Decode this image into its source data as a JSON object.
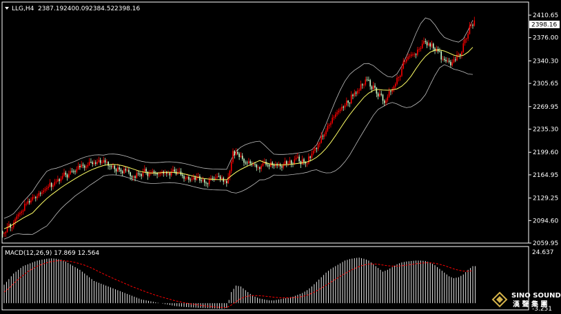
{
  "header": {
    "symbol": "LLG,H4",
    "open": "2387.19",
    "high": "2400.09",
    "low": "2384.52",
    "close": "2398.16"
  },
  "macd_label": "MACD(12,26,9) 17.869 12.564",
  "price_axis": {
    "ticks": [
      "2410.65",
      "2376.00",
      "2340.30",
      "2305.65",
      "2269.95",
      "2235.30",
      "2199.60",
      "2164.95",
      "2129.25",
      "2094.60",
      "2059.95"
    ],
    "current_price": "2398.16"
  },
  "macd_axis": {
    "max_label": "24.637",
    "min_label": "-3.251"
  },
  "logo": {
    "line1": "SINO SOUND",
    "line2": "漢 聲 集 團"
  },
  "colors": {
    "background": "#000000",
    "bull_candle": "#ff0000",
    "bear_candle": "#ccffcc",
    "ma_line": "#ffff66",
    "bands": "#c0c0c0",
    "macd_hist": "#ffffff",
    "macd_signal": "#ff0000",
    "frame": "#ffffff"
  },
  "chart_data": {
    "type": "line",
    "price": {
      "ylim": [
        2059.95,
        2410.65
      ],
      "close": [
        2082,
        2088,
        2098,
        2108,
        2116,
        2122,
        2130,
        2136,
        2140,
        2146,
        2150,
        2154,
        2160,
        2164,
        2168,
        2172,
        2176,
        2178,
        2180,
        2182,
        2183,
        2184,
        2182,
        2178,
        2174,
        2170,
        2168,
        2166,
        2166,
        2167,
        2168,
        2169,
        2170,
        2171,
        2170,
        2168,
        2164,
        2162,
        2160,
        2158,
        2158,
        2157,
        2157,
        2158,
        2158,
        2158,
        2157,
        2157,
        2200,
        2195,
        2188,
        2184,
        2182,
        2180,
        2180,
        2179,
        2180,
        2180,
        2181,
        2182,
        2183,
        2185,
        2186,
        2187,
        2190,
        2200,
        2212,
        2226,
        2238,
        2250,
        2260,
        2268,
        2276,
        2284,
        2292,
        2300,
        2310,
        2304,
        2298,
        2286,
        2278,
        2290,
        2304,
        2320,
        2334,
        2344,
        2350,
        2356,
        2362,
        2366,
        2364,
        2356,
        2346,
        2338,
        2334,
        2340,
        2354,
        2374,
        2390,
        2398
      ]
    },
    "macd": {
      "ylim": [
        -3.251,
        24.637
      ],
      "histogram": [
        10,
        13,
        16,
        18,
        20,
        21,
        22,
        23,
        23.5,
        24,
        24.2,
        24,
        23.5,
        22.5,
        21,
        19.5,
        18,
        16,
        14,
        12,
        11,
        10,
        9,
        8,
        7,
        6,
        5,
        4,
        3,
        2,
        1.5,
        1,
        0.5,
        0,
        -0.5,
        -1,
        -1.5,
        -1.8,
        -2,
        -2.2,
        -2.3,
        -2.5,
        -2.6,
        -2.7,
        -2.8,
        -2.9,
        -3,
        -2.5,
        6,
        9.5,
        9,
        7,
        5,
        3.5,
        2.5,
        2,
        1.5,
        1.5,
        2,
        2.5,
        3,
        3.5,
        4.5,
        5.5,
        7,
        9,
        11.5,
        14,
        16.5,
        18.5,
        20,
        21.5,
        23,
        23.8,
        24.3,
        24.6,
        24,
        23,
        21,
        19,
        17,
        18,
        19.5,
        21,
        22,
        22.5,
        22.8,
        23,
        23,
        22.8,
        22,
        20.5,
        18.5,
        16.5,
        14.5,
        13.5,
        14,
        15.5,
        18,
        20
      ],
      "signal": [
        6,
        8,
        10.5,
        13,
        15,
        17,
        18.5,
        20,
        21,
        21.8,
        22.5,
        22.8,
        23,
        22.8,
        22.5,
        22,
        21.3,
        20.5,
        19.5,
        18.3,
        17,
        15.8,
        14.6,
        13.4,
        12.3,
        11.2,
        10.1,
        9,
        8,
        7,
        6.1,
        5.2,
        4.3,
        3.5,
        2.8,
        2.1,
        1.4,
        0.8,
        0.3,
        -0.2,
        -0.6,
        -1,
        -1.3,
        -1.6,
        -1.9,
        -2.1,
        -2.3,
        -2.4,
        -1,
        0.8,
        2.5,
        3.5,
        4,
        4.1,
        4,
        3.8,
        3.5,
        3.2,
        3,
        2.9,
        2.9,
        3,
        3.2,
        3.6,
        4.3,
        5.3,
        6.6,
        8.1,
        9.7,
        11.3,
        12.9,
        14.5,
        16,
        17.4,
        18.7,
        19.8,
        20.6,
        21.1,
        21.2,
        21,
        20.6,
        20.2,
        20,
        20,
        20.2,
        20.5,
        20.9,
        21.3,
        21.6,
        21.8,
        21.8,
        21.5,
        21,
        20.3,
        19.4,
        18.5,
        17.8,
        17.3,
        17.2,
        17.5
      ]
    }
  }
}
